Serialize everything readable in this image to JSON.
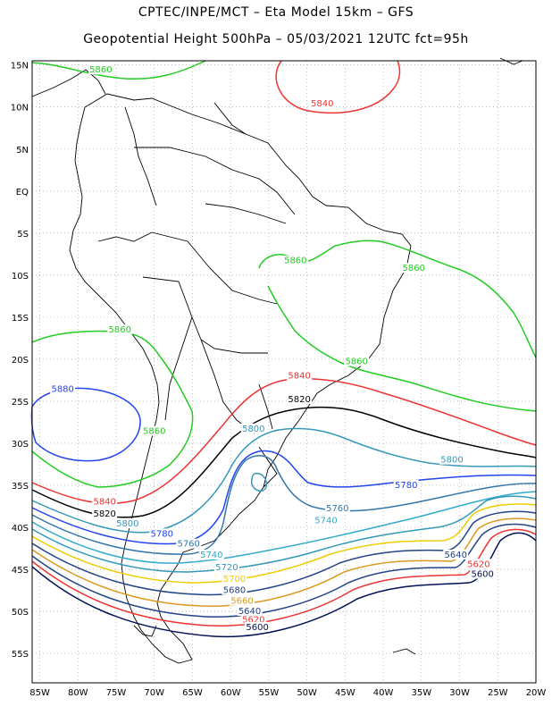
{
  "title_line1": "CPTEC/INPE/MCT –  Eta Model 15km – GFS",
  "title_line2": "Geopotential Height 500hPa – 05/03/2021 12UTC fct=95h",
  "map": {
    "lon_range": [
      -86,
      -20
    ],
    "lat_range": [
      -58.5,
      15.5
    ],
    "lat_ticks": [
      {
        "value": 15,
        "label": "15N"
      },
      {
        "value": 10,
        "label": "10N"
      },
      {
        "value": 5,
        "label": "5N"
      },
      {
        "value": 0,
        "label": "EQ"
      },
      {
        "value": -5,
        "label": "5S"
      },
      {
        "value": -10,
        "label": "10S"
      },
      {
        "value": -15,
        "label": "15S"
      },
      {
        "value": -20,
        "label": "20S"
      },
      {
        "value": -25,
        "label": "25S"
      },
      {
        "value": -30,
        "label": "30S"
      },
      {
        "value": -35,
        "label": "35S"
      },
      {
        "value": -40,
        "label": "40S"
      },
      {
        "value": -45,
        "label": "45S"
      },
      {
        "value": -50,
        "label": "50S"
      },
      {
        "value": -55,
        "label": "55S"
      }
    ],
    "lon_ticks": [
      {
        "value": -85,
        "label": "85W"
      },
      {
        "value": -80,
        "label": "80W"
      },
      {
        "value": -75,
        "label": "75W"
      },
      {
        "value": -70,
        "label": "70W"
      },
      {
        "value": -65,
        "label": "65W"
      },
      {
        "value": -60,
        "label": "60W"
      },
      {
        "value": -55,
        "label": "55W"
      },
      {
        "value": -50,
        "label": "50W"
      },
      {
        "value": -45,
        "label": "45W"
      },
      {
        "value": -40,
        "label": "40W"
      },
      {
        "value": -35,
        "label": "35W"
      },
      {
        "value": -30,
        "label": "30W"
      },
      {
        "value": -25,
        "label": "25W"
      },
      {
        "value": -20,
        "label": "20W"
      }
    ],
    "gridlines": true
  },
  "contour_labels": [
    {
      "text": "5860",
      "color": "#22cc22",
      "lon": -77,
      "lat": 14.2
    },
    {
      "text": "5840",
      "color": "#ee3333",
      "lon": -48,
      "lat": 10.2
    },
    {
      "text": "5860",
      "color": "#22cc22",
      "lon": -51.5,
      "lat": -8.5
    },
    {
      "text": "5860",
      "color": "#22cc22",
      "lon": -36,
      "lat": -9.4
    },
    {
      "text": "5860",
      "color": "#22cc22",
      "lon": -74.5,
      "lat": -16.7
    },
    {
      "text": "5860",
      "color": "#22cc22",
      "lon": -43.5,
      "lat": -20.5
    },
    {
      "text": "5840",
      "color": "#ee3333",
      "lon": -51,
      "lat": -22.2
    },
    {
      "text": "5820",
      "color": "#000000",
      "lon": -51,
      "lat": -25.0
    },
    {
      "text": "5880",
      "color": "#2244ee",
      "lon": -82,
      "lat": -23.8
    },
    {
      "text": "5860",
      "color": "#22cc22",
      "lon": -70,
      "lat": -28.8
    },
    {
      "text": "5800",
      "color": "#3399bb",
      "lon": -57,
      "lat": -28.5
    },
    {
      "text": "5800",
      "color": "#3399bb",
      "lon": -31,
      "lat": -32.2
    },
    {
      "text": "5780",
      "color": "#2244ee",
      "lon": -37,
      "lat": -35.2
    },
    {
      "text": "5840",
      "color": "#ee3333",
      "lon": -76.5,
      "lat": -37.2
    },
    {
      "text": "5820",
      "color": "#000000",
      "lon": -76.5,
      "lat": -38.6
    },
    {
      "text": "5800",
      "color": "#3399bb",
      "lon": -73.5,
      "lat": -39.8
    },
    {
      "text": "5780",
      "color": "#2244ee",
      "lon": -69,
      "lat": -41.0
    },
    {
      "text": "5760",
      "color": "#3377aa",
      "lon": -65.5,
      "lat": -42.2
    },
    {
      "text": "5740",
      "color": "#33aacc",
      "lon": -62.5,
      "lat": -43.5
    },
    {
      "text": "5760",
      "color": "#3377aa",
      "lon": -46,
      "lat": -38.0
    },
    {
      "text": "5740",
      "color": "#33aacc",
      "lon": -47.5,
      "lat": -39.4
    },
    {
      "text": "5720",
      "color": "#3399bb",
      "lon": -60.5,
      "lat": -45.0
    },
    {
      "text": "5700",
      "color": "#eecc00",
      "lon": -59.5,
      "lat": -46.4
    },
    {
      "text": "5680",
      "color": "#224488",
      "lon": -59.5,
      "lat": -47.7
    },
    {
      "text": "5660",
      "color": "#dd9922",
      "lon": -58.5,
      "lat": -49.0
    },
    {
      "text": "5640",
      "color": "#224488",
      "lon": -57.5,
      "lat": -50.2
    },
    {
      "text": "5620",
      "color": "#ee3333",
      "lon": -57,
      "lat": -51.2
    },
    {
      "text": "5600",
      "color": "#001155",
      "lon": -56.5,
      "lat": -52.1
    },
    {
      "text": "5640",
      "color": "#224488",
      "lon": -30.5,
      "lat": -43.5
    },
    {
      "text": "5620",
      "color": "#ee3333",
      "lon": -27.5,
      "lat": -44.6
    },
    {
      "text": "5600",
      "color": "#001155",
      "lon": -27,
      "lat": -45.8
    }
  ]
}
